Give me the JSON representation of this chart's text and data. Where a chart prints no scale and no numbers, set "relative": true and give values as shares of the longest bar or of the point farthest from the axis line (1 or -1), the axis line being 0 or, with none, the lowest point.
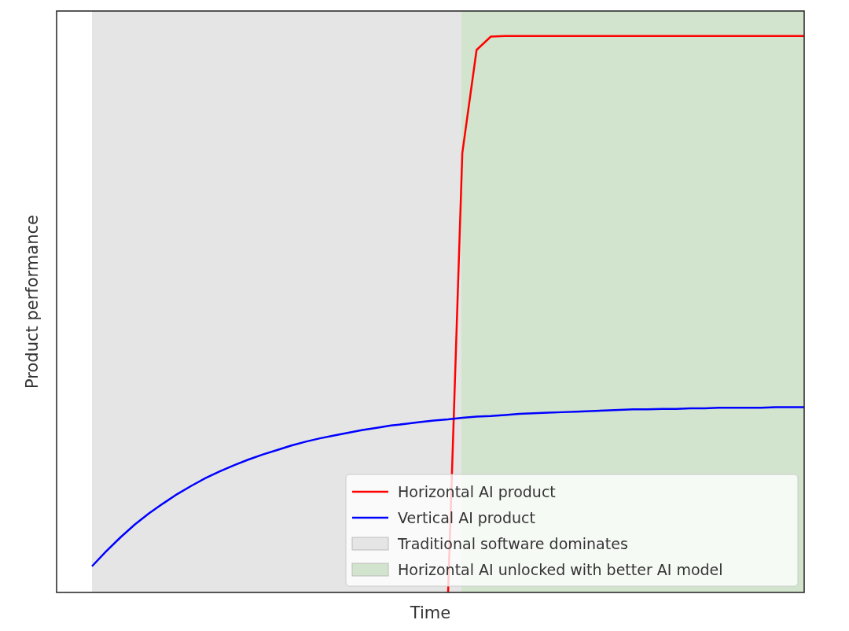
{
  "chart_data": {
    "type": "line",
    "relative": true,
    "xlabel": "Time",
    "ylabel": "Product performance",
    "legend": "bottom right",
    "categories": [
      null,
      null,
      null,
      null,
      null,
      null,
      null,
      null,
      null,
      null,
      null,
      null,
      null,
      null,
      null,
      null,
      null,
      null,
      null,
      null,
      null,
      null,
      null,
      null,
      null,
      null,
      null,
      null,
      null,
      null,
      null,
      null,
      null,
      null,
      null,
      null,
      null,
      null,
      null,
      null,
      null,
      null,
      null,
      null,
      null,
      null,
      null,
      null,
      null,
      null,
      null
    ],
    "series": [
      {
        "name": "Horizontal AI product",
        "color": "#ff0000",
        "values": [
          null,
          null,
          null,
          null,
          null,
          null,
          null,
          null,
          null,
          null,
          null,
          null,
          null,
          null,
          null,
          null,
          null,
          null,
          null,
          null,
          null,
          null,
          null,
          null,
          null,
          0,
          0.79,
          0.975,
          0.999,
          1,
          1,
          1,
          1,
          1,
          1,
          1,
          1,
          1,
          1,
          1,
          1,
          1,
          1,
          1,
          1,
          1,
          1,
          1,
          1,
          1,
          1
        ]
      },
      {
        "name": "Vertical AI product",
        "color": "#0000ff",
        "values": [
          0.047,
          0.074,
          0.099,
          0.122,
          0.142,
          0.16,
          0.177,
          0.192,
          0.206,
          0.218,
          0.229,
          0.239,
          0.248,
          0.256,
          0.264,
          0.271,
          0.277,
          0.282,
          0.287,
          0.292,
          0.296,
          0.3,
          0.303,
          0.306,
          0.309,
          0.311,
          0.314,
          0.316,
          0.317,
          0.319,
          0.321,
          0.322,
          0.323,
          0.324,
          0.325,
          0.326,
          0.327,
          0.328,
          0.329,
          0.329,
          0.33,
          0.33,
          0.331,
          0.331,
          0.332,
          0.332,
          0.332,
          0.332,
          0.333,
          0.333,
          0.333
        ]
      }
    ],
    "annotations": [
      "Traditional software dominates",
      "Horizontal AI unlocked with better AI model"
    ]
  }
}
